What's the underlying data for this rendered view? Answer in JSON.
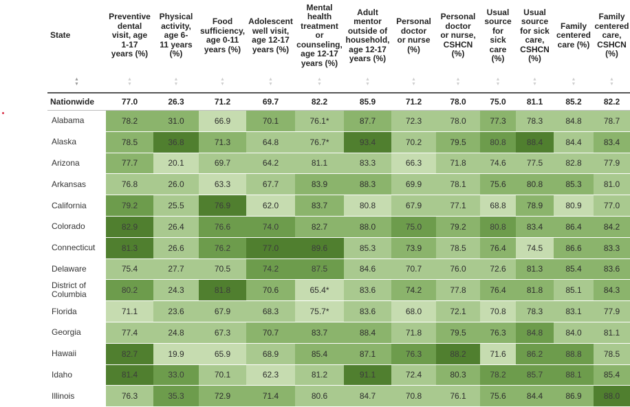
{
  "columns": [
    "State",
    "Preventive dental visit, age 1-17 years (%)",
    "Physical activity, age 6-11 years (%)",
    "Food sufficiency, age 0-11 years (%)",
    "Adolescent well visit, age 12-17 years (%)",
    "Mental health treatment or counseling, age 12-17 years (%)",
    "Adult mentor outside of household, age 12-17 years (%)",
    "Personal doctor or nurse (%)",
    "Personal doctor or nurse, CSHCN (%)",
    "Usual source for sick care (%)",
    "Usual source for sick care, CSHCN (%)",
    "Family centered care (%)",
    "Family centered care, CSHCN (%)"
  ],
  "header_lines": [
    [
      "State"
    ],
    [
      "Preventive",
      "dental",
      "visit, age",
      "1-17",
      "years (%)"
    ],
    [
      "Physical",
      "activity,",
      "age 6-",
      "11 years",
      "(%)"
    ],
    [
      "Food",
      "sufficiency,",
      "age 0-11",
      "years (%)"
    ],
    [
      "Adolescent",
      "well visit,",
      "age 12-17",
      "years (%)"
    ],
    [
      "Mental",
      "health",
      "treatment",
      "or",
      "counseling,",
      "age 12-17",
      "years (%)"
    ],
    [
      "Adult",
      "mentor",
      "outside of",
      "household,",
      "age 12-17",
      "years (%)"
    ],
    [
      "Personal",
      "doctor",
      "or nurse",
      "(%)"
    ],
    [
      "Personal",
      "doctor",
      "or nurse,",
      "CSHCN",
      "(%)"
    ],
    [
      "Usual",
      "source",
      "for",
      "sick",
      "care",
      "(%)"
    ],
    [
      "Usual",
      "source",
      "for sick",
      "care,",
      "CSHCN",
      "(%)"
    ],
    [
      "Family",
      "centered",
      "care (%)"
    ],
    [
      "Family",
      "centered",
      "care,",
      "CSHCN",
      "(%)"
    ]
  ],
  "sort_icon": "sort-arrows-icon",
  "nationwide": {
    "label": "Nationwide",
    "values": [
      "77.0",
      "26.3",
      "71.2",
      "69.7",
      "82.2",
      "85.9",
      "71.2",
      "78.0",
      "75.0",
      "81.1",
      "85.2",
      "82.2"
    ]
  },
  "rows": [
    {
      "state": "Alabama",
      "values": [
        "78.2",
        "31.0",
        "66.9",
        "70.1",
        "76.1*",
        "87.7",
        "72.3",
        "78.0",
        "77.3",
        "78.3",
        "84.8",
        "78.7"
      ],
      "levels": [
        3,
        3,
        1,
        3,
        2,
        3,
        2,
        2,
        3,
        2,
        2,
        2
      ]
    },
    {
      "state": "Alaska",
      "values": [
        "78.5",
        "36.8",
        "71.3",
        "64.8",
        "76.7*",
        "93.4",
        "70.2",
        "79.5",
        "80.8",
        "88.4",
        "84.4",
        "83.4"
      ],
      "levels": [
        3,
        5,
        3,
        2,
        2,
        5,
        2,
        3,
        4,
        5,
        2,
        3
      ]
    },
    {
      "state": "Arizona",
      "values": [
        "77.7",
        "20.1",
        "69.7",
        "64.2",
        "81.1",
        "83.3",
        "66.3",
        "71.8",
        "74.6",
        "77.5",
        "82.8",
        "77.9"
      ],
      "levels": [
        3,
        1,
        2,
        2,
        2,
        2,
        1,
        2,
        2,
        2,
        2,
        2
      ]
    },
    {
      "state": "Arkansas",
      "values": [
        "76.8",
        "26.0",
        "63.3",
        "67.7",
        "83.9",
        "88.3",
        "69.9",
        "78.1",
        "75.6",
        "80.8",
        "85.3",
        "81.0"
      ],
      "levels": [
        2,
        2,
        1,
        2,
        3,
        3,
        2,
        2,
        3,
        3,
        3,
        2
      ]
    },
    {
      "state": "California",
      "values": [
        "79.2",
        "25.5",
        "76.9",
        "62.0",
        "83.7",
        "80.8",
        "67.9",
        "77.1",
        "68.8",
        "78.9",
        "80.9",
        "77.0"
      ],
      "levels": [
        4,
        2,
        5,
        1,
        3,
        1,
        2,
        2,
        1,
        3,
        1,
        2
      ]
    },
    {
      "state": "Colorado",
      "values": [
        "82.9",
        "26.4",
        "76.6",
        "74.0",
        "82.7",
        "88.0",
        "75.0",
        "79.2",
        "80.8",
        "83.4",
        "86.4",
        "84.2"
      ],
      "levels": [
        5,
        2,
        4,
        4,
        3,
        3,
        4,
        3,
        4,
        3,
        3,
        3
      ]
    },
    {
      "state": "Connecticut",
      "values": [
        "81.3",
        "26.6",
        "76.2",
        "77.0",
        "89.6",
        "85.3",
        "73.9",
        "78.5",
        "76.4",
        "74.5",
        "86.6",
        "83.3"
      ],
      "levels": [
        5,
        2,
        4,
        5,
        5,
        2,
        3,
        2,
        3,
        1,
        3,
        3
      ]
    },
    {
      "state": "Delaware",
      "values": [
        "75.4",
        "27.7",
        "70.5",
        "74.2",
        "87.5",
        "84.6",
        "70.7",
        "76.0",
        "72.6",
        "81.3",
        "85.4",
        "83.6"
      ],
      "levels": [
        2,
        2,
        2,
        4,
        4,
        2,
        2,
        2,
        2,
        3,
        3,
        3
      ]
    },
    {
      "state": "District of Columbia",
      "values": [
        "80.2",
        "24.3",
        "81.8",
        "70.6",
        "65.4*",
        "83.6",
        "74.2",
        "77.8",
        "76.4",
        "81.8",
        "85.1",
        "84.3"
      ],
      "levels": [
        4,
        2,
        5,
        3,
        1,
        2,
        3,
        2,
        3,
        3,
        2,
        3
      ]
    },
    {
      "state": "Florida",
      "values": [
        "71.1",
        "23.6",
        "67.9",
        "68.3",
        "75.7*",
        "83.6",
        "68.0",
        "72.1",
        "70.8",
        "78.3",
        "83.1",
        "77.9"
      ],
      "levels": [
        1,
        2,
        2,
        2,
        1,
        2,
        1,
        2,
        1,
        2,
        2,
        2
      ]
    },
    {
      "state": "Georgia",
      "values": [
        "77.4",
        "24.8",
        "67.3",
        "70.7",
        "83.7",
        "88.4",
        "71.8",
        "79.5",
        "76.3",
        "84.8",
        "84.0",
        "81.1"
      ],
      "levels": [
        2,
        2,
        2,
        3,
        3,
        3,
        2,
        3,
        3,
        4,
        2,
        2
      ]
    },
    {
      "state": "Hawaii",
      "values": [
        "82.7",
        "19.9",
        "65.9",
        "68.9",
        "85.4",
        "87.1",
        "76.3",
        "88.2",
        "71.6",
        "86.2",
        "88.8",
        "78.5"
      ],
      "levels": [
        5,
        1,
        1,
        2,
        3,
        3,
        4,
        5,
        1,
        4,
        4,
        2
      ]
    },
    {
      "state": "Idaho",
      "values": [
        "81.4",
        "33.0",
        "70.1",
        "62.3",
        "81.2",
        "91.1",
        "72.4",
        "80.3",
        "78.2",
        "85.7",
        "88.1",
        "85.4"
      ],
      "levels": [
        5,
        4,
        2,
        1,
        2,
        5,
        2,
        3,
        4,
        4,
        4,
        3
      ]
    },
    {
      "state": "Illinois",
      "values": [
        "76.3",
        "35.3",
        "72.9",
        "71.4",
        "80.6",
        "84.7",
        "70.8",
        "76.1",
        "75.6",
        "84.4",
        "86.9",
        "88.0"
      ],
      "levels": [
        2,
        4,
        3,
        3,
        2,
        2,
        2,
        2,
        3,
        3,
        3,
        5
      ]
    }
  ],
  "palette": [
    "#e4eed9",
    "#c6dcb0",
    "#a9c98f",
    "#8bb46c",
    "#6d9c4c",
    "#507f2f"
  ]
}
